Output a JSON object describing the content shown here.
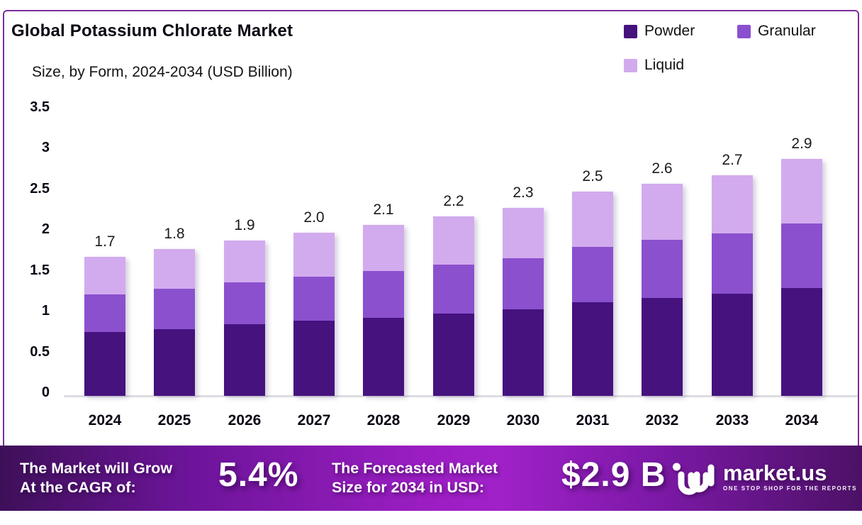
{
  "header": {
    "title": "Global Potassium Chlorate Market",
    "subtitle": "Size, by Form, 2024-2034 (USD Billion)"
  },
  "legend": {
    "items": [
      {
        "label": "Powder",
        "color": "#45127e"
      },
      {
        "label": "Granular",
        "color": "#8b50ce"
      },
      {
        "label": "Liquid",
        "color": "#d2abee"
      }
    ]
  },
  "chart_data": {
    "type": "bar",
    "stacked": true,
    "title": "Global Potassium Chlorate Market Size, by Form, 2024-2034 (USD Billion)",
    "categories": [
      "2024",
      "2025",
      "2026",
      "2027",
      "2028",
      "2029",
      "2030",
      "2031",
      "2032",
      "2033",
      "2034"
    ],
    "series": [
      {
        "name": "Powder",
        "color": "#45127e",
        "values": [
          0.78,
          0.82,
          0.87,
          0.92,
          0.96,
          1.01,
          1.06,
          1.14,
          1.2,
          1.25,
          1.32
        ]
      },
      {
        "name": "Granular",
        "color": "#8b50ce",
        "values": [
          0.46,
          0.49,
          0.52,
          0.54,
          0.57,
          0.6,
          0.62,
          0.68,
          0.71,
          0.74,
          0.79
        ]
      },
      {
        "name": "Liquid",
        "color": "#d2abee",
        "values": [
          0.46,
          0.49,
          0.51,
          0.54,
          0.57,
          0.59,
          0.62,
          0.68,
          0.69,
          0.71,
          0.79
        ]
      }
    ],
    "totals_labels": [
      "1.7",
      "1.8",
      "1.9",
      "2.0",
      "2.1",
      "2.2",
      "2.3",
      "2.5",
      "2.6",
      "2.7",
      "2.9"
    ],
    "xlabel": "",
    "ylabel": "",
    "ylim": [
      0,
      3.5
    ],
    "y_ticks": [
      "3.5",
      "3",
      "2.5",
      "2",
      "1.5",
      "1",
      "0.5",
      "0"
    ],
    "grid": false,
    "legend_position": "top-right"
  },
  "banner": {
    "left_label_line1": "The Market will Grow",
    "left_label_line2": "At the CAGR of:",
    "cagr_value": "5.4%",
    "right_label_line1": "The Forecasted Market",
    "right_label_line2": "Size for 2034 in USD:",
    "forecast_value": "$2.9 B",
    "logo_text": "market.us",
    "logo_tagline": "ONE STOP SHOP FOR THE REPORTS"
  },
  "colors": {
    "frame_border": "#7b2d9b",
    "axis_line": "#dcdce2",
    "banner_gradient_left": "#3e1059",
    "banner_gradient_mid": "#a021c8",
    "banner_gradient_right": "#4c1166",
    "text_dark": "#0c0614",
    "banner_text": "#ffffff"
  }
}
